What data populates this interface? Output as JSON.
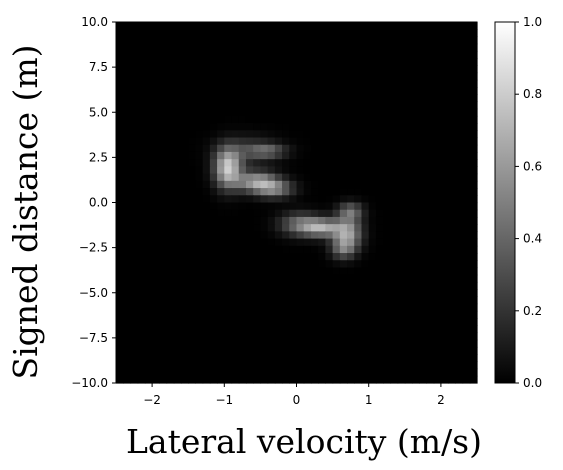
{
  "chart_data": {
    "type": "heatmap",
    "title": "",
    "xlabel": "Lateral velocity (m/s)",
    "ylabel": "Signed distance (m)",
    "xlim": [
      -2.5,
      2.5
    ],
    "ylim": [
      -10.0,
      10.0
    ],
    "x_ticks": [
      -2,
      -1,
      0,
      1,
      2
    ],
    "x_tick_labels": [
      "−2",
      "−1",
      "0",
      "1",
      "2"
    ],
    "y_ticks": [
      10.0,
      7.5,
      5.0,
      2.5,
      0.0,
      -2.5,
      -5.0,
      -7.5,
      -10.0
    ],
    "y_tick_labels": [
      "10.0",
      "7.5",
      "5.0",
      "2.5",
      "0.0",
      "−2.5",
      "−5.0",
      "−7.5",
      "−10.0"
    ],
    "colormap": "gray",
    "colorbar": {
      "range": [
        0.0,
        1.0
      ],
      "ticks": [
        1.0,
        0.8,
        0.6,
        0.4,
        0.2,
        0.0
      ],
      "tick_labels": [
        "1.0",
        "0.8",
        "0.6",
        "0.4",
        "0.2",
        "0.0"
      ]
    },
    "grid": false,
    "density_components": [
      {
        "x": -0.95,
        "y": 1.9,
        "sx": 0.13,
        "sy": 0.75,
        "weight": 0.78
      },
      {
        "x": -0.55,
        "y": 1.15,
        "sx": 0.2,
        "sy": 0.4,
        "weight": 0.6
      },
      {
        "x": -0.3,
        "y": 0.75,
        "sx": 0.18,
        "sy": 0.35,
        "weight": 0.45
      },
      {
        "x": -0.65,
        "y": 2.9,
        "sx": 0.28,
        "sy": 0.55,
        "weight": 0.22
      },
      {
        "x": -0.4,
        "y": 2.85,
        "sx": 0.18,
        "sy": 0.25,
        "weight": 0.32
      },
      {
        "x": 0.05,
        "y": -1.2,
        "sx": 0.2,
        "sy": 0.45,
        "weight": 0.42
      },
      {
        "x": 0.35,
        "y": -1.4,
        "sx": 0.18,
        "sy": 0.35,
        "weight": 0.58
      },
      {
        "x": 0.7,
        "y": -1.7,
        "sx": 0.14,
        "sy": 0.6,
        "weight": 0.62
      },
      {
        "x": 0.75,
        "y": -0.5,
        "sx": 0.12,
        "sy": 0.35,
        "weight": 0.4
      },
      {
        "x": 0.65,
        "y": -2.6,
        "sx": 0.12,
        "sy": 0.4,
        "weight": 0.35
      }
    ]
  }
}
